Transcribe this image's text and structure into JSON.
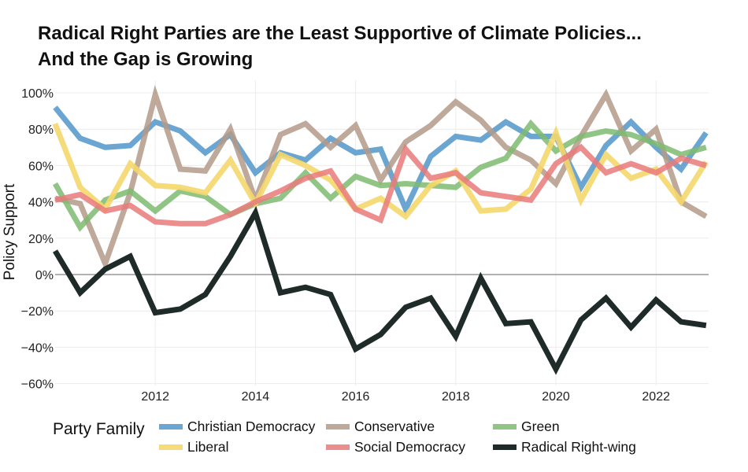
{
  "title_lines": [
    "Radical Right Parties are the Least Supportive of Climate Policies...",
    "And the Gap is Growing"
  ],
  "chart_data": {
    "type": "line",
    "ylabel": "Policy Support",
    "xlim": [
      2010.0,
      2023.05
    ],
    "ylim": [
      -63,
      104
    ],
    "x_ticks": [
      2012,
      2014,
      2016,
      2018,
      2020,
      2022
    ],
    "y_ticks": [
      100,
      80,
      60,
      40,
      20,
      0,
      -20,
      -40,
      -60
    ],
    "y_tick_labels": [
      "100%",
      "80%",
      "60%",
      "40%",
      "20%",
      "0%",
      "−20%",
      "−40%",
      "−60%"
    ],
    "zero_line": true,
    "grid": true,
    "legend_title": "Party Family",
    "legend_position": "bottom",
    "x": [
      2010.0,
      2010.5,
      2011.0,
      2011.5,
      2012.0,
      2012.5,
      2013.0,
      2013.5,
      2014.0,
      2014.5,
      2015.0,
      2015.5,
      2016.0,
      2016.5,
      2017.0,
      2017.5,
      2018.0,
      2018.5,
      2019.0,
      2019.5,
      2020.0,
      2020.5,
      2021.0,
      2021.5,
      2022.0,
      2022.5,
      2023.0
    ],
    "series": [
      {
        "name": "Christian Democracy",
        "color": "#5b9bcc",
        "opacity": 0.9,
        "values": [
          92,
          75,
          70,
          71,
          84,
          79,
          67,
          77,
          56,
          67,
          63,
          75,
          67,
          69,
          36,
          65,
          76,
          74,
          84,
          76,
          76,
          48,
          71,
          84,
          70,
          58,
          78
        ]
      },
      {
        "name": "Conservative",
        "color": "#b39a88",
        "opacity": 0.85,
        "values": [
          42,
          39,
          6,
          45,
          99,
          58,
          57,
          80,
          41,
          77,
          83,
          70,
          82,
          52,
          73,
          82,
          95,
          85,
          70,
          63,
          50,
          76,
          99,
          68,
          80,
          40,
          32
        ]
      },
      {
        "name": "Green",
        "color": "#7ebb70",
        "opacity": 0.85,
        "values": [
          50,
          26,
          41,
          46,
          35,
          46,
          43,
          33,
          39,
          42,
          56,
          42,
          54,
          49,
          50,
          49,
          48,
          59,
          64,
          83,
          68,
          76,
          79,
          77,
          72,
          66,
          70
        ]
      },
      {
        "name": "Liberal",
        "color": "#f5d76b",
        "opacity": 0.9,
        "values": [
          83,
          48,
          36,
          61,
          49,
          48,
          45,
          63,
          39,
          66,
          60,
          52,
          36,
          42,
          32,
          49,
          57,
          35,
          36,
          47,
          78,
          41,
          66,
          53,
          58,
          40,
          62
        ]
      },
      {
        "name": "Social Democracy",
        "color": "#e97a7a",
        "opacity": 0.85,
        "values": [
          41,
          44,
          35,
          38,
          29,
          28,
          28,
          33,
          40,
          46,
          53,
          57,
          36,
          30,
          69,
          53,
          56,
          45,
          43,
          41,
          61,
          70,
          56,
          61,
          56,
          64,
          60
        ]
      },
      {
        "name": "Radical Right-wing",
        "color": "#1f2b28",
        "opacity": 1.0,
        "values": [
          13,
          -10,
          3,
          10,
          -21,
          -19,
          -11,
          10,
          34,
          -10,
          -7,
          -11,
          -41,
          -33,
          -18,
          -13,
          -34,
          -2,
          -27,
          -26,
          -52,
          -25,
          -13,
          -29,
          -14,
          -26,
          -28
        ]
      }
    ]
  }
}
